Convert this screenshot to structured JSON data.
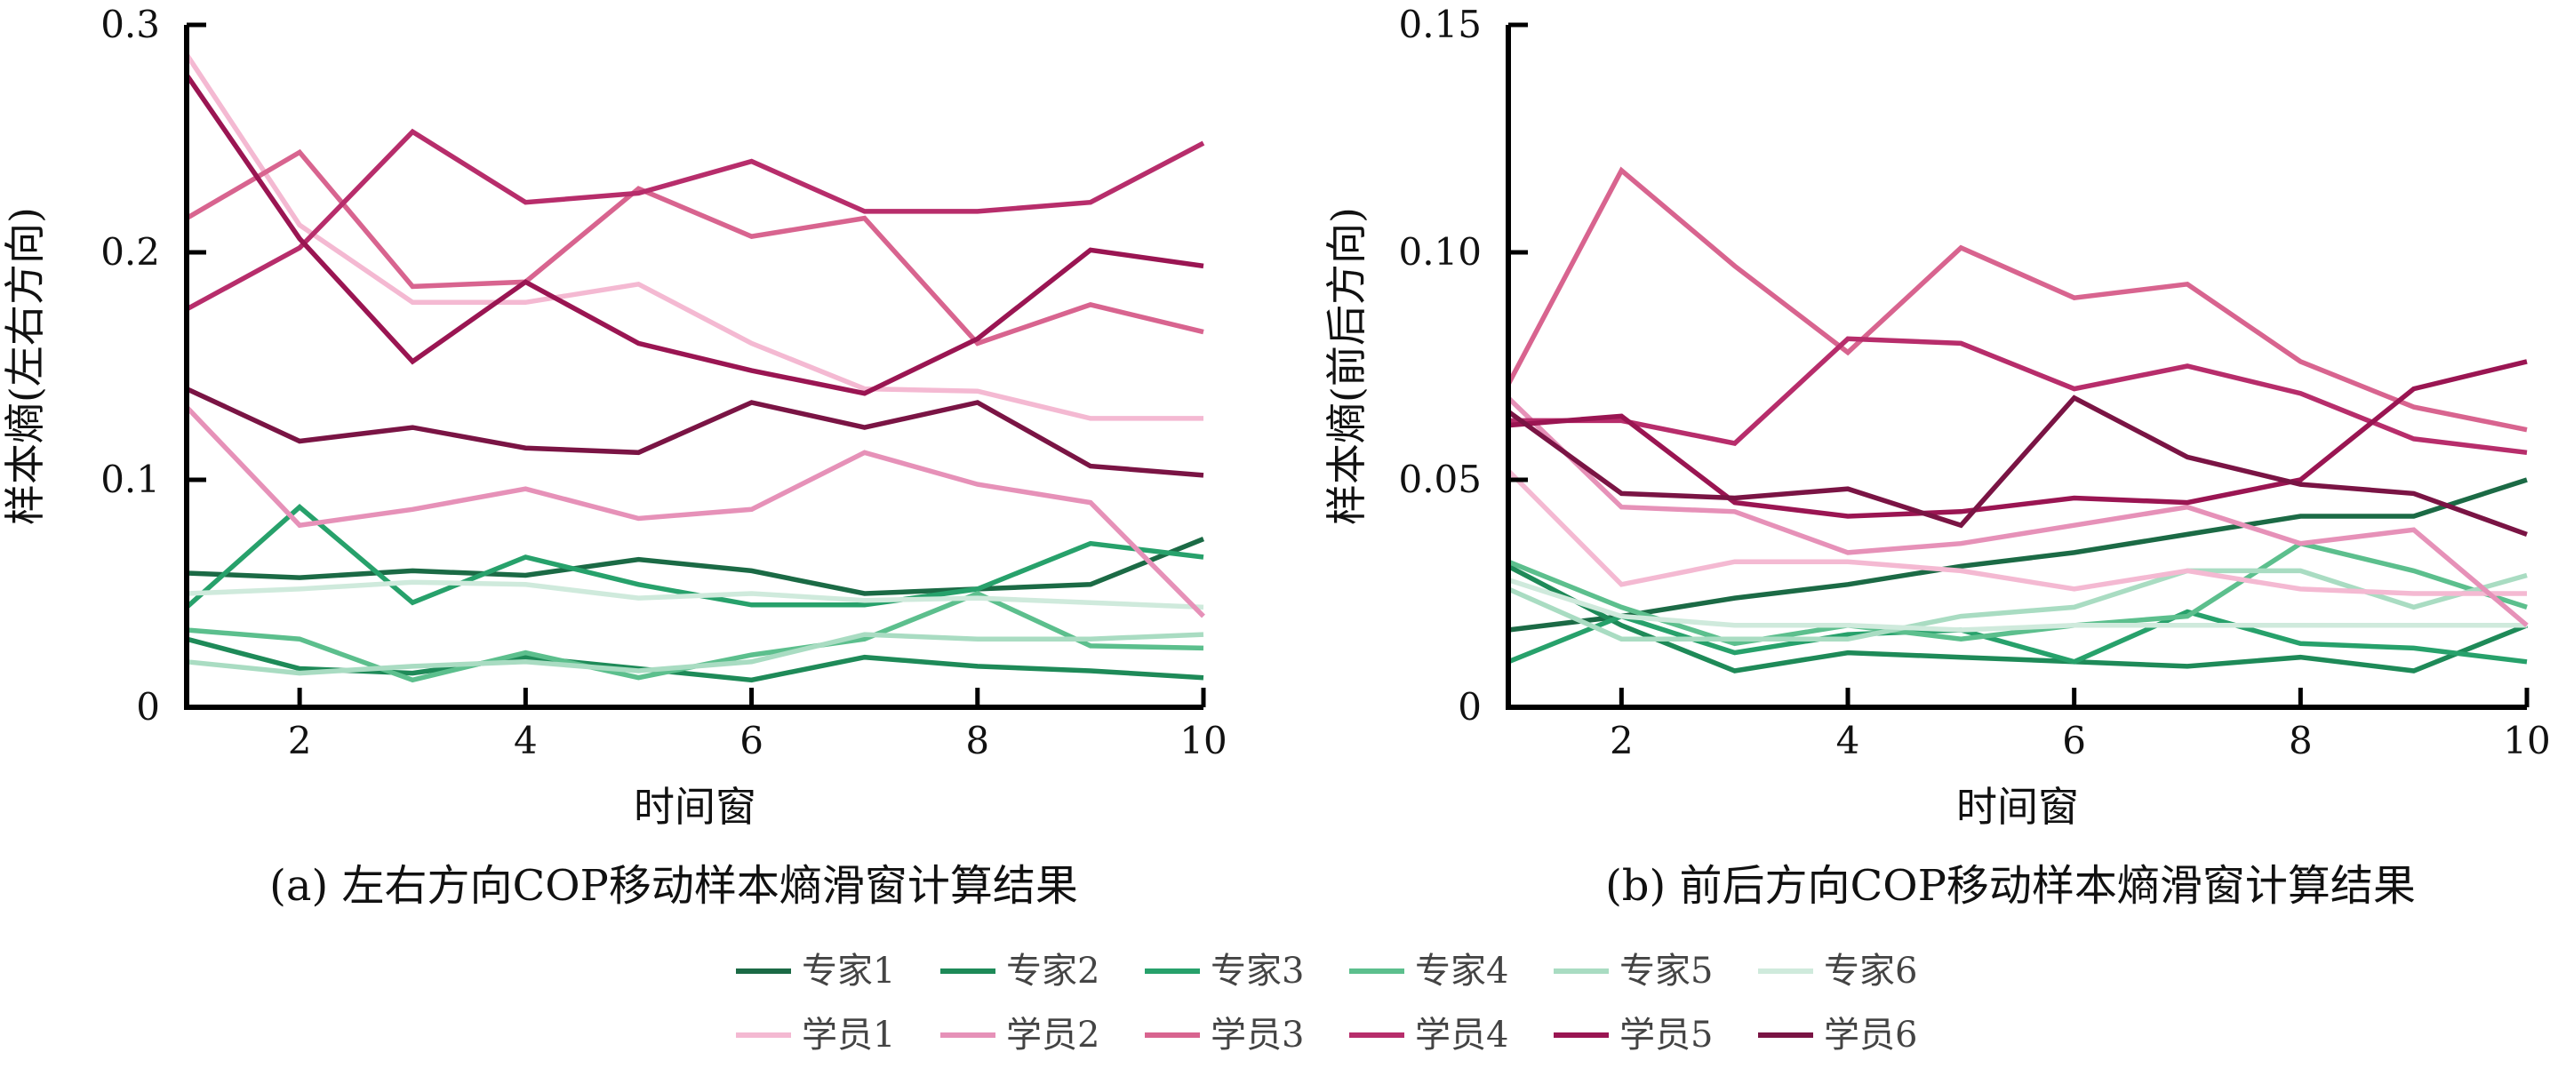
{
  "chart_data": [
    {
      "type": "line",
      "caption": "(a) 左右方向COP移动样本熵滑窗计算结果",
      "xlabel": "时间窗",
      "ylabel": "样本熵(左右方向)",
      "xlim": [
        1,
        10
      ],
      "ylim": [
        0,
        0.3
      ],
      "xticks": [
        2,
        4,
        6,
        8,
        10
      ],
      "yticks": [
        0,
        0.1,
        0.2,
        0.3
      ],
      "ytick_labels": [
        "0",
        "0.1",
        "0.2",
        "0.3"
      ],
      "x": [
        1,
        2,
        3,
        4,
        5,
        6,
        7,
        8,
        9,
        10
      ],
      "series": [
        {
          "name": "专家1",
          "color": "#1b6a45",
          "values": [
            0.059,
            0.057,
            0.06,
            0.058,
            0.065,
            0.06,
            0.05,
            0.052,
            0.054,
            0.074
          ]
        },
        {
          "name": "专家2",
          "color": "#1e8a58",
          "values": [
            0.03,
            0.017,
            0.015,
            0.022,
            0.017,
            0.012,
            0.022,
            0.018,
            0.016,
            0.013
          ]
        },
        {
          "name": "专家3",
          "color": "#27a16b",
          "values": [
            0.044,
            0.088,
            0.046,
            0.066,
            0.054,
            0.045,
            0.045,
            0.052,
            0.072,
            0.066
          ]
        },
        {
          "name": "专家4",
          "color": "#5cbf8d",
          "values": [
            0.034,
            0.03,
            0.012,
            0.024,
            0.013,
            0.023,
            0.03,
            0.05,
            0.027,
            0.026
          ]
        },
        {
          "name": "专家5",
          "color": "#a9dcc2",
          "values": [
            0.02,
            0.015,
            0.018,
            0.02,
            0.016,
            0.02,
            0.032,
            0.03,
            0.03,
            0.032
          ]
        },
        {
          "name": "专家6",
          "color": "#cfeadc",
          "values": [
            0.05,
            0.052,
            0.055,
            0.054,
            0.048,
            0.05,
            0.047,
            0.048,
            0.046,
            0.044
          ]
        },
        {
          "name": "学员1",
          "color": "#f4b9d2",
          "values": [
            0.287,
            0.212,
            0.178,
            0.178,
            0.186,
            0.16,
            0.14,
            0.139,
            0.127,
            0.127
          ]
        },
        {
          "name": "学员2",
          "color": "#e691b8",
          "values": [
            0.132,
            0.08,
            0.087,
            0.096,
            0.083,
            0.087,
            0.112,
            0.098,
            0.09,
            0.04
          ]
        },
        {
          "name": "学员3",
          "color": "#d8648f",
          "values": [
            0.215,
            0.244,
            0.185,
            0.187,
            0.228,
            0.207,
            0.215,
            0.16,
            0.177,
            0.165
          ]
        },
        {
          "name": "学员4",
          "color": "#b72d6b",
          "values": [
            0.175,
            0.202,
            0.253,
            0.222,
            0.226,
            0.24,
            0.218,
            0.218,
            0.222,
            0.248
          ]
        },
        {
          "name": "学员5",
          "color": "#9a1552",
          "values": [
            0.278,
            0.206,
            0.152,
            0.187,
            0.16,
            0.148,
            0.138,
            0.162,
            0.201,
            0.194
          ]
        },
        {
          "name": "学员6",
          "color": "#7a1444",
          "values": [
            0.14,
            0.117,
            0.123,
            0.114,
            0.112,
            0.134,
            0.123,
            0.134,
            0.106,
            0.102
          ]
        }
      ]
    },
    {
      "type": "line",
      "caption": "(b) 前后方向COP移动样本熵滑窗计算结果",
      "xlabel": "时间窗",
      "ylabel": "样本熵(前后方向)",
      "xlim": [
        1,
        10
      ],
      "ylim": [
        0,
        0.15
      ],
      "xticks": [
        2,
        4,
        6,
        8,
        10
      ],
      "yticks": [
        0,
        0.05,
        0.1,
        0.15
      ],
      "ytick_labels": [
        "0",
        "0.05",
        "0.10",
        "0.15"
      ],
      "x": [
        1,
        2,
        3,
        4,
        5,
        6,
        7,
        8,
        9,
        10
      ],
      "series": [
        {
          "name": "专家1",
          "color": "#1b6a45",
          "values": [
            0.017,
            0.02,
            0.024,
            0.027,
            0.031,
            0.034,
            0.038,
            0.042,
            0.042,
            0.05
          ]
        },
        {
          "name": "专家2",
          "color": "#1e8a58",
          "values": [
            0.031,
            0.018,
            0.008,
            0.012,
            0.011,
            0.01,
            0.009,
            0.011,
            0.008,
            0.018
          ]
        },
        {
          "name": "专家3",
          "color": "#27a16b",
          "values": [
            0.01,
            0.02,
            0.012,
            0.016,
            0.017,
            0.01,
            0.021,
            0.014,
            0.013,
            0.01
          ]
        },
        {
          "name": "专家4",
          "color": "#5cbf8d",
          "values": [
            0.032,
            0.022,
            0.014,
            0.018,
            0.015,
            0.018,
            0.02,
            0.036,
            0.03,
            0.022
          ]
        },
        {
          "name": "专家5",
          "color": "#a9dcc2",
          "values": [
            0.026,
            0.015,
            0.015,
            0.015,
            0.02,
            0.022,
            0.03,
            0.03,
            0.022,
            0.029
          ]
        },
        {
          "name": "专家6",
          "color": "#cfeadc",
          "values": [
            0.028,
            0.02,
            0.018,
            0.018,
            0.017,
            0.018,
            0.018,
            0.018,
            0.018,
            0.018
          ]
        },
        {
          "name": "学员1",
          "color": "#f4b9d2",
          "values": [
            0.052,
            0.027,
            0.032,
            0.032,
            0.03,
            0.026,
            0.03,
            0.026,
            0.025,
            0.025
          ]
        },
        {
          "name": "学员2",
          "color": "#e691b8",
          "values": [
            0.068,
            0.044,
            0.043,
            0.034,
            0.036,
            0.04,
            0.044,
            0.036,
            0.039,
            0.018
          ]
        },
        {
          "name": "学员3",
          "color": "#d8648f",
          "values": [
            0.071,
            0.118,
            0.097,
            0.078,
            0.101,
            0.09,
            0.093,
            0.076,
            0.066,
            0.061
          ]
        },
        {
          "name": "学员4",
          "color": "#b72d6b",
          "values": [
            0.063,
            0.063,
            0.058,
            0.081,
            0.08,
            0.07,
            0.075,
            0.069,
            0.059,
            0.056
          ]
        },
        {
          "name": "学员5",
          "color": "#9a1552",
          "values": [
            0.062,
            0.064,
            0.045,
            0.042,
            0.043,
            0.046,
            0.045,
            0.05,
            0.07,
            0.076
          ]
        },
        {
          "name": "学员6",
          "color": "#7a1444",
          "values": [
            0.065,
            0.047,
            0.046,
            0.048,
            0.04,
            0.068,
            0.055,
            0.049,
            0.047,
            0.038
          ]
        }
      ]
    }
  ],
  "legend": {
    "rows": [
      [
        "专家1",
        "专家2",
        "专家3",
        "专家4",
        "专家5",
        "专家6"
      ],
      [
        "学员1",
        "学员2",
        "学员3",
        "学员4",
        "学员5",
        "学员6"
      ]
    ]
  }
}
